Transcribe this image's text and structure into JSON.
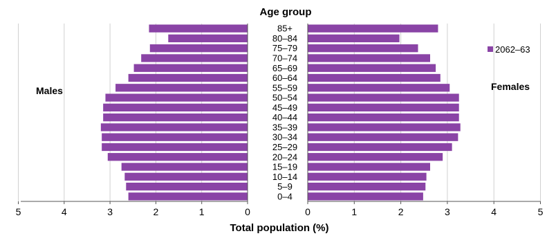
{
  "chart_data": {
    "type": "bar",
    "orientation": "horizontal-pyramid",
    "title": "Age group",
    "xlabel": "Total population (%)",
    "left_panel_label": "Males",
    "right_panel_label": "Females",
    "categories": [
      "85+",
      "80–84",
      "75–79",
      "70–74",
      "65–69",
      "60–64",
      "55–59",
      "50–54",
      "45–49",
      "40–44",
      "35–39",
      "30–34",
      "25–29",
      "20–24",
      "15–19",
      "10–14",
      "5–9",
      "0–4"
    ],
    "series": [
      {
        "name": "2062–63",
        "color": "#8a44a6",
        "males": [
          2.15,
          1.73,
          2.13,
          2.32,
          2.48,
          2.6,
          2.88,
          3.1,
          3.15,
          3.15,
          3.2,
          3.18,
          3.18,
          3.05,
          2.75,
          2.68,
          2.65,
          2.6
        ],
        "females": [
          2.8,
          1.97,
          2.37,
          2.63,
          2.75,
          2.85,
          3.05,
          3.25,
          3.25,
          3.25,
          3.28,
          3.23,
          3.1,
          2.9,
          2.63,
          2.55,
          2.53,
          2.48
        ]
      }
    ],
    "xlim": [
      0,
      5
    ],
    "ticks": [
      "0",
      "1",
      "2",
      "3",
      "4",
      "5"
    ],
    "males_ticks": [
      "5",
      "4",
      "3",
      "2",
      "1",
      "0"
    ],
    "grid": true,
    "legend_position": "top-right"
  }
}
